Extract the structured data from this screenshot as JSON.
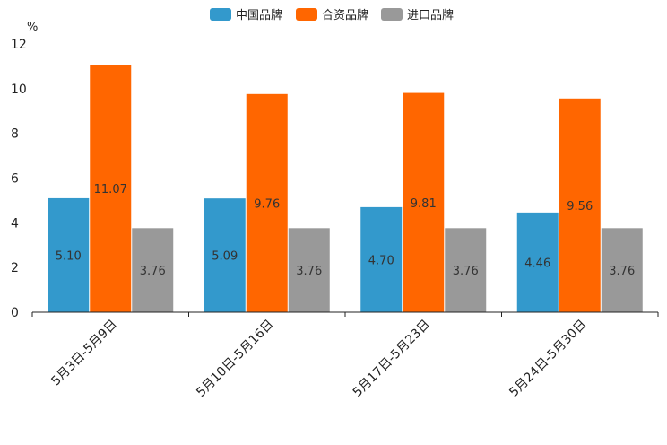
{
  "chart_data": {
    "type": "bar",
    "unit": "%",
    "categories": [
      "5月3日-5月9日",
      "5月10日-5月16日",
      "5月17日-5月23日",
      "5月24日-5月30日"
    ],
    "series": [
      {
        "name": "中国品牌",
        "color": "#3399cc",
        "values": [
          5.1,
          5.09,
          4.7,
          4.46
        ],
        "labels": [
          "5.10",
          "5.09",
          "4.70",
          "4.46"
        ]
      },
      {
        "name": "合资品牌",
        "color": "#ff6600",
        "values": [
          11.07,
          9.76,
          9.81,
          9.56
        ],
        "labels": [
          "11.07",
          "9.76",
          "9.81",
          "9.56"
        ]
      },
      {
        "name": "进口品牌",
        "color": "#999999",
        "values": [
          3.76,
          3.76,
          3.76,
          3.76
        ],
        "labels": [
          "3.76",
          "3.76",
          "3.76",
          "3.76"
        ]
      }
    ],
    "ylim": [
      0,
      12
    ],
    "yticks": [
      "0",
      "2",
      "4",
      "6",
      "8",
      "10",
      "12"
    ],
    "legend_position": "top-center"
  }
}
